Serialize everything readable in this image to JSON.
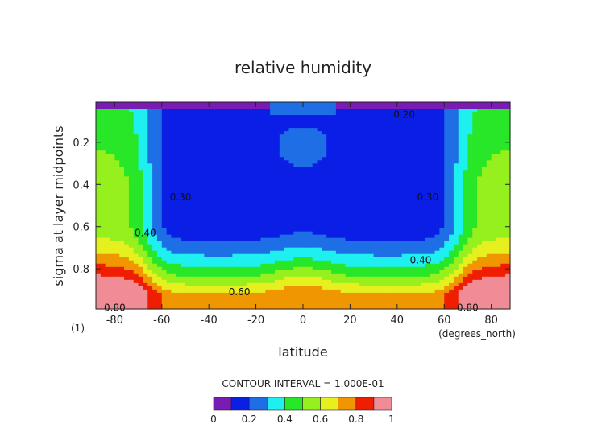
{
  "chart_data": {
    "type": "contour",
    "title": "relative humidity",
    "xlabel": "latitude",
    "ylabel": "sigma at layer midpoints",
    "x_unit": "(degrees_north)",
    "panel_tag": "(1)",
    "xlim": [
      -88,
      88
    ],
    "ylim": [
      0.99,
      0.01
    ],
    "x_ticks": [
      -80,
      -60,
      -40,
      -20,
      0,
      20,
      40,
      60,
      80
    ],
    "y_ticks": [
      0.2,
      0.4,
      0.6,
      0.8
    ],
    "x_tick_labels": [
      "-80",
      "-60",
      "-40",
      "-20",
      "0",
      "20",
      "40",
      "60",
      "80"
    ],
    "y_tick_labels": [
      "0.2",
      "0.4",
      "0.6",
      "0.8"
    ],
    "contour_interval_text": "CONTOUR INTERVAL = 1.000E-01",
    "levels": [
      0,
      0.1,
      0.2,
      0.3,
      0.4,
      0.5,
      0.6,
      0.7,
      0.8,
      0.9,
      1.0
    ],
    "colorbar_ticks": [
      0,
      0.2,
      0.4,
      0.6,
      0.8,
      1
    ],
    "colorbar_tick_labels": [
      "0",
      "0.2",
      "0.4",
      "0.6",
      "0.8",
      "1"
    ],
    "colors": [
      "#7a1cb4",
      "#0a1ee6",
      "#1e6ee6",
      "#1ef0f0",
      "#28e628",
      "#96f01e",
      "#e6f01e",
      "#f09600",
      "#f01e00",
      "#f08c96"
    ],
    "contour_labels": [
      {
        "text": "0.20",
        "lat": 43,
        "sigma": 0.07
      },
      {
        "text": "0.30",
        "lat": -52,
        "sigma": 0.46
      },
      {
        "text": "0.30",
        "lat": 53,
        "sigma": 0.46
      },
      {
        "text": "0.40",
        "lat": -67,
        "sigma": 0.63
      },
      {
        "text": "0.40",
        "lat": 50,
        "sigma": 0.76
      },
      {
        "text": "0.60",
        "lat": -27,
        "sigma": 0.91
      },
      {
        "text": "0.80",
        "lat": -80,
        "sigma": 0.985
      },
      {
        "text": "0.80",
        "lat": 70,
        "sigma": 0.985
      }
    ]
  }
}
